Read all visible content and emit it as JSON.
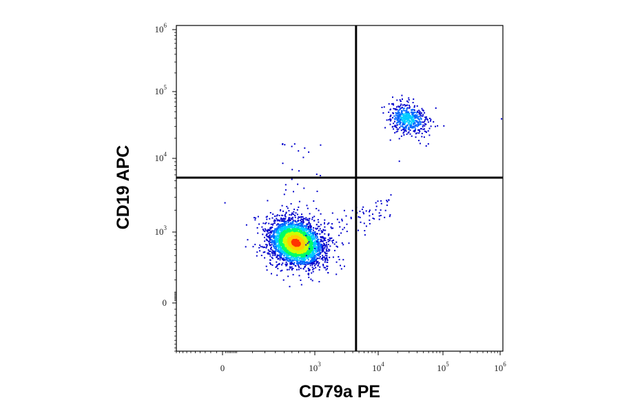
{
  "chart_data": {
    "type": "scatter",
    "plot_style": "flow cytometry pseudocolor density dot plot",
    "xlabel": "CD79a PE",
    "ylabel": "CD19 APC",
    "x_scale": "biexponential (log above ~10^3)",
    "y_scale": "biexponential (log above ~10^3)",
    "xlim": [
      -500,
      1000000
    ],
    "ylim": [
      -500,
      1000000
    ],
    "x_ticks": [
      {
        "base": "0",
        "exp": "",
        "value": 0
      },
      {
        "base": "10",
        "exp": "3",
        "value": 1000
      },
      {
        "base": "10",
        "exp": "4",
        "value": 10000
      },
      {
        "base": "10",
        "exp": "5",
        "value": 100000
      },
      {
        "base": "10",
        "exp": "6",
        "value": 1000000
      }
    ],
    "y_ticks": [
      {
        "base": "0",
        "exp": "",
        "value": 0
      },
      {
        "base": "10",
        "exp": "3",
        "value": 1000
      },
      {
        "base": "10",
        "exp": "4",
        "value": 10000
      },
      {
        "base": "10",
        "exp": "5",
        "value": 100000
      },
      {
        "base": "10",
        "exp": "6",
        "value": 1000000
      }
    ],
    "quadrant_gate": {
      "x": 4500,
      "y": 5500
    },
    "populations": [
      {
        "name": "CD79a- CD19-",
        "center": [
          650,
          750
        ],
        "approx_spread_decades": [
          0.35,
          0.3
        ],
        "relative_size": 0.88,
        "density": "high (peak red)"
      },
      {
        "name": "CD79a+ CD19+",
        "center": [
          28000,
          40000
        ],
        "approx_spread_decades": [
          0.25,
          0.2
        ],
        "relative_size": 0.12,
        "density": "moderate (peak cyan)"
      }
    ],
    "color_scale": [
      "#0000cc",
      "#0066ff",
      "#00ccff",
      "#00ff66",
      "#ccff00",
      "#ffcc00",
      "#ff3300"
    ],
    "grid": false,
    "legend": "none"
  }
}
